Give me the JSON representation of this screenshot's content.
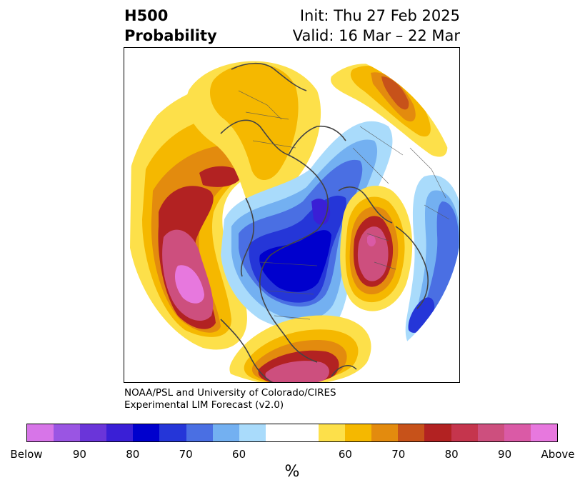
{
  "header": {
    "left_line1": "H500",
    "left_line2": "Probability",
    "right_line1": "Init: Thu 27 Feb 2025",
    "right_line2": "Valid: 16 Mar – 22 Mar"
  },
  "credit": {
    "line1": "NOAA/PSL and University of Colorado/CIRES",
    "line2": "Experimental LIM Forecast (v2.0)"
  },
  "colorbar": {
    "colors": [
      "#d775e8",
      "#9a55e3",
      "#6a35d9",
      "#3a1fd6",
      "#0000cd",
      "#2536d8",
      "#4a6fe3",
      "#73b0f1",
      "#a9dbfb",
      "#ffffff",
      "#ffffff",
      "#fde04a",
      "#f5b800",
      "#e38b0e",
      "#c7521a",
      "#b22222",
      "#c5354d",
      "#cd4f7e",
      "#da5aa6",
      "#e778de"
    ],
    "tick_labels": [
      "Below",
      "90",
      "80",
      "70",
      "60",
      "60",
      "70",
      "80",
      "90",
      "Above"
    ],
    "units": "%"
  }
}
